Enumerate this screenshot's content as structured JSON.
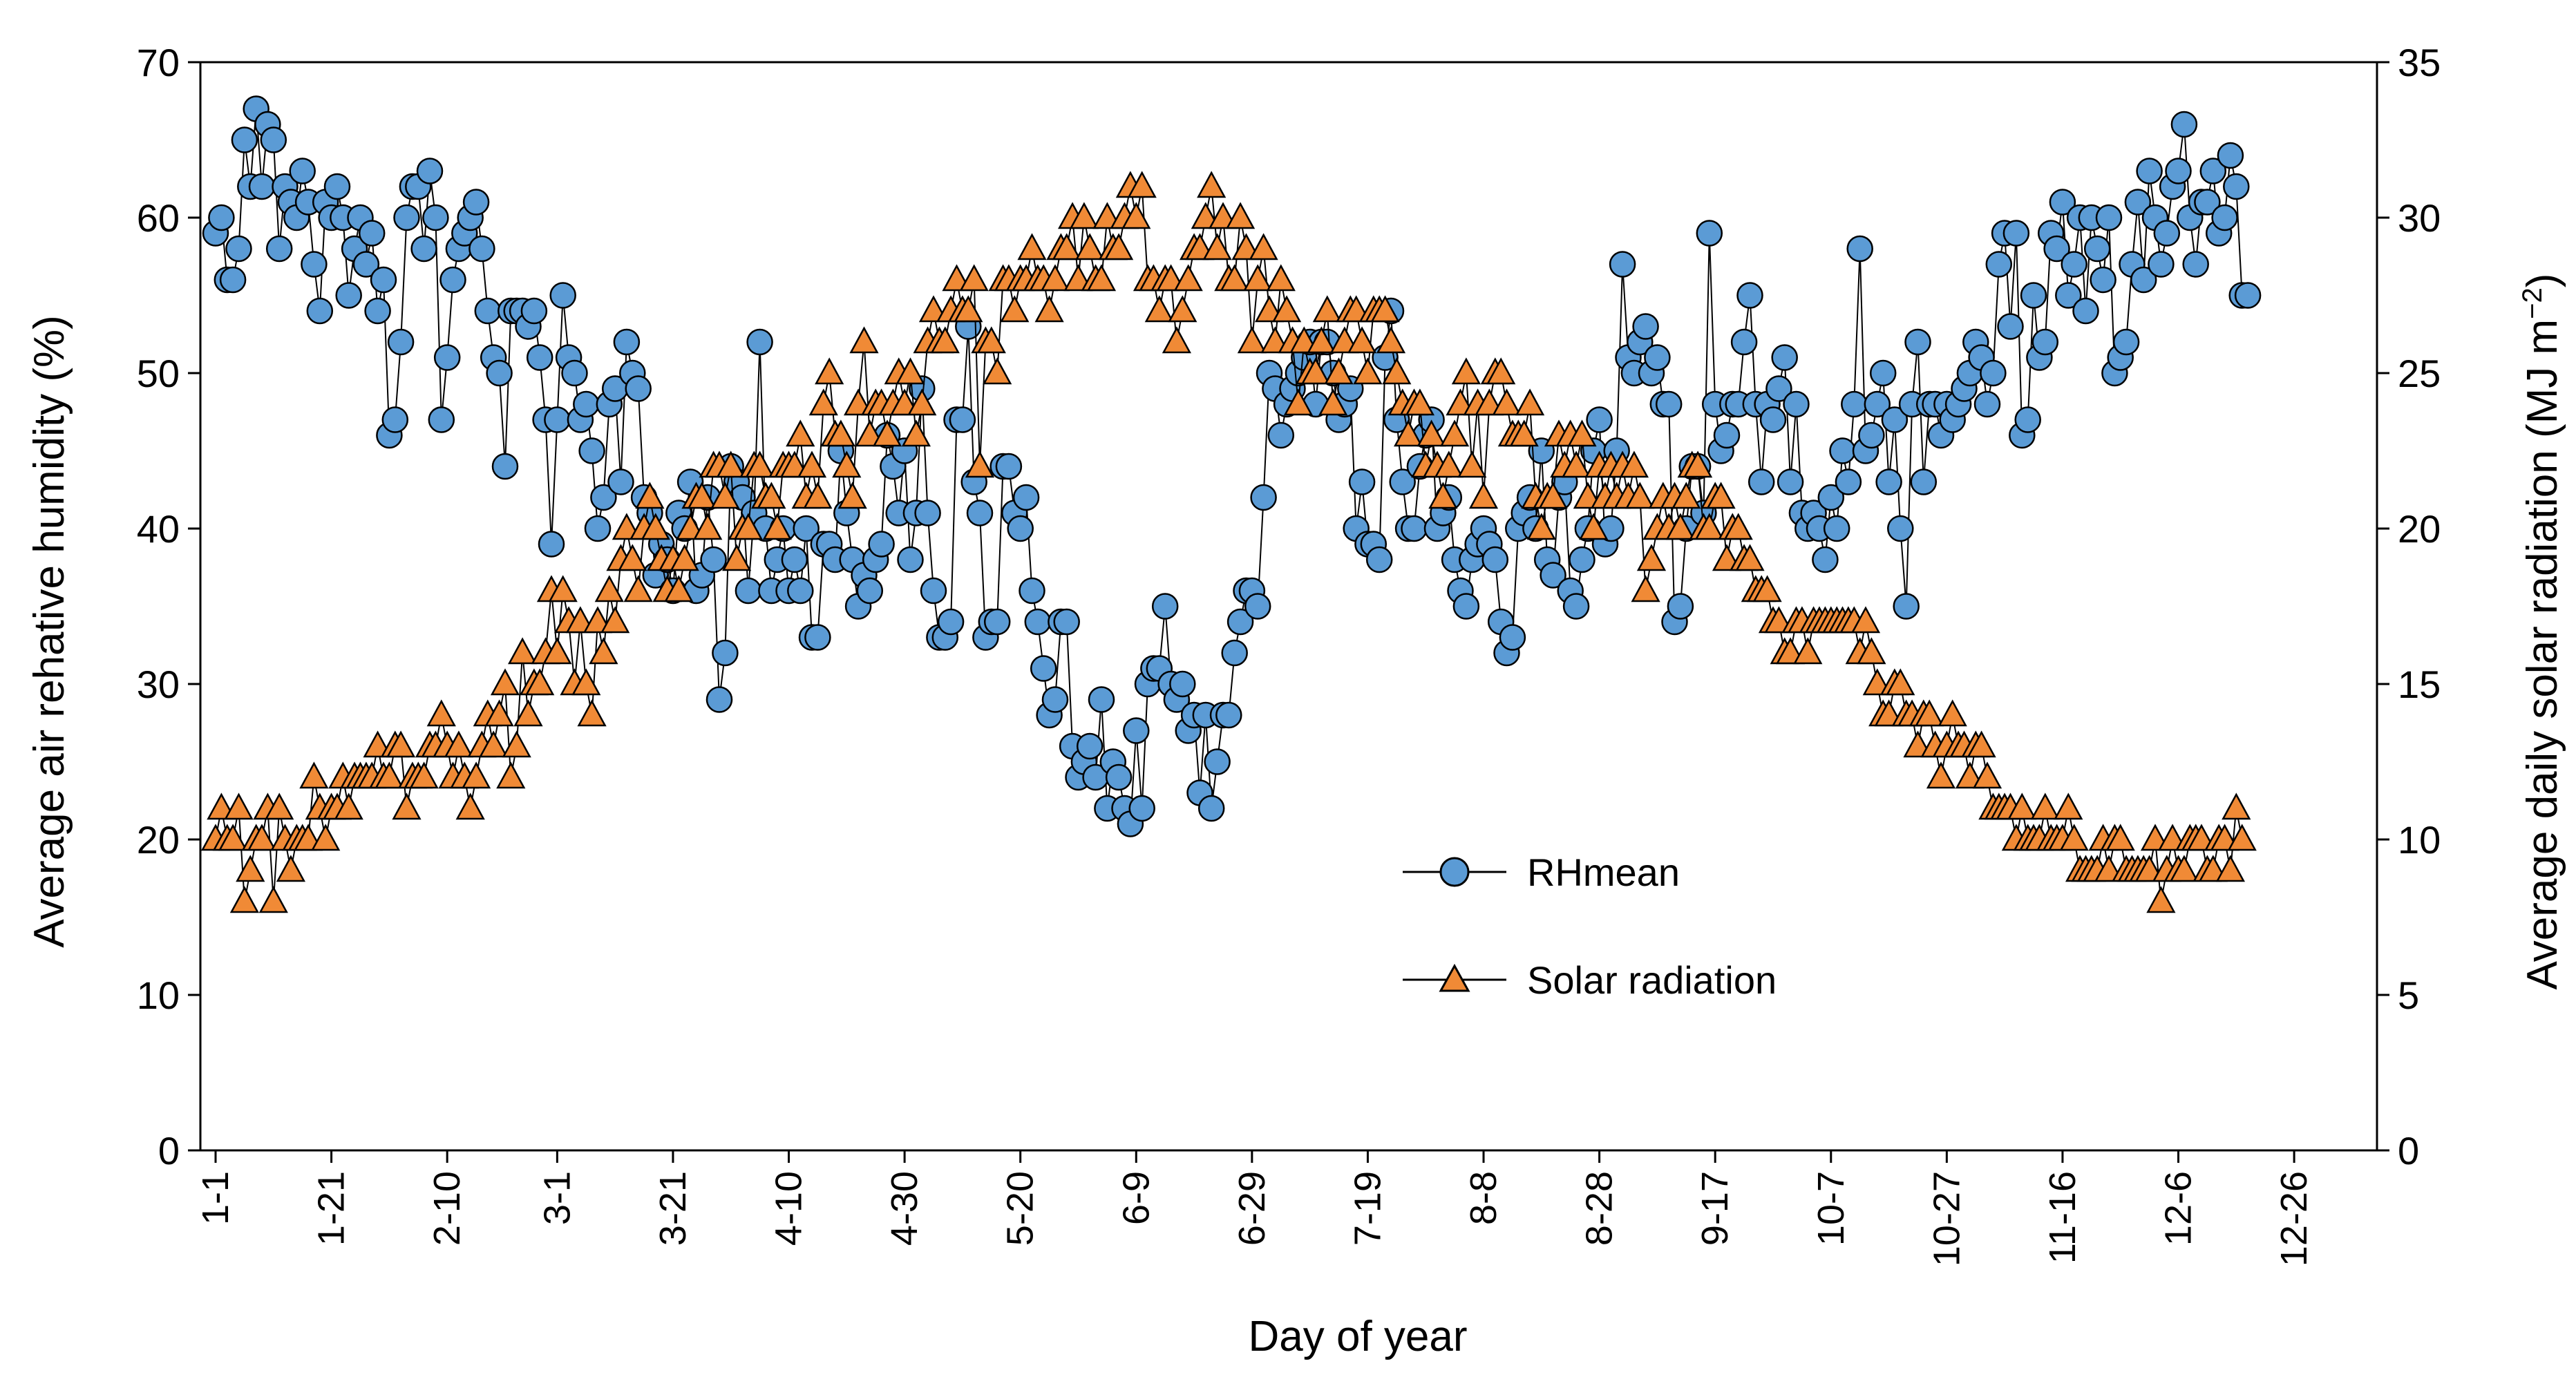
{
  "chart_data": {
    "type": "line",
    "title": "",
    "xlabel": "Day of year",
    "ylabel_left": "Average air rehative humidity (%)",
    "ylabel_right_base": "Average daily solar radiation (MJ m",
    "ylabel_right_sup": "−2",
    "ylabel_right_end": ")",
    "x_range": [
      1,
      365
    ],
    "ylim_left": [
      0,
      70
    ],
    "ylim_right": [
      0,
      35
    ],
    "yticks_left": [
      0,
      10,
      20,
      30,
      40,
      50,
      60,
      70
    ],
    "yticks_right": [
      0,
      5,
      10,
      15,
      20,
      25,
      30,
      35
    ],
    "xticks": [
      {
        "day": 1,
        "label": "1-1"
      },
      {
        "day": 21,
        "label": "1-21"
      },
      {
        "day": 41,
        "label": "2-10"
      },
      {
        "day": 60,
        "label": "3-1"
      },
      {
        "day": 80,
        "label": "3-21"
      },
      {
        "day": 100,
        "label": "4-10"
      },
      {
        "day": 120,
        "label": "4-30"
      },
      {
        "day": 140,
        "label": "5-20"
      },
      {
        "day": 160,
        "label": "6-9"
      },
      {
        "day": 180,
        "label": "6-29"
      },
      {
        "day": 200,
        "label": "7-19"
      },
      {
        "day": 220,
        "label": "8-8"
      },
      {
        "day": 240,
        "label": "8-28"
      },
      {
        "day": 260,
        "label": "9-17"
      },
      {
        "day": 280,
        "label": "10-7"
      },
      {
        "day": 300,
        "label": "10-27"
      },
      {
        "day": 320,
        "label": "11-16"
      },
      {
        "day": 340,
        "label": "12-6"
      },
      {
        "day": 360,
        "label": "12-26"
      }
    ],
    "legend": {
      "position": "center-right",
      "entries": [
        "RHmean",
        "Solar radiation"
      ]
    },
    "series": [
      {
        "name": "RHmean",
        "axis": "left",
        "color": "#5b9bd5",
        "marker": "circle",
        "x_start": 1,
        "x_step": 1,
        "values": [
          59,
          60,
          56,
          56,
          58,
          65,
          62,
          67,
          62,
          66,
          65,
          58,
          62,
          61,
          60,
          63,
          61,
          57,
          54,
          61,
          60,
          62,
          60,
          55,
          58,
          60,
          57,
          59,
          54,
          56,
          46,
          47,
          52,
          60,
          62,
          62,
          58,
          63,
          60,
          47,
          51,
          56,
          58,
          59,
          60,
          61,
          58,
          54,
          51,
          50,
          44,
          54,
          54,
          54,
          53,
          54,
          51,
          47,
          39,
          47,
          55,
          51,
          50,
          47,
          48,
          45,
          40,
          42,
          48,
          49,
          43,
          52,
          50,
          49,
          42,
          41,
          37,
          39,
          38,
          36,
          41,
          40,
          43,
          36,
          37,
          42,
          38,
          29,
          32,
          44,
          43,
          42,
          36,
          41,
          52,
          40,
          36,
          38,
          40,
          36,
          38,
          36,
          40,
          33,
          33,
          39,
          39,
          38,
          45,
          41,
          38,
          35,
          37,
          36,
          38,
          39,
          46,
          44,
          41,
          45,
          38,
          41,
          49,
          41,
          36,
          33,
          33,
          34,
          47,
          47,
          53,
          43,
          41,
          33,
          34,
          34,
          44,
          44,
          41,
          40,
          42,
          36,
          34,
          31,
          28,
          29,
          34,
          34,
          26,
          24,
          25,
          26,
          24,
          29,
          22,
          25,
          24,
          22,
          21,
          27,
          22,
          30,
          31,
          31,
          35,
          30,
          29,
          30,
          27,
          28,
          23,
          28,
          22,
          25,
          28,
          28,
          32,
          34,
          36,
          36,
          35,
          42,
          50,
          49,
          46,
          48,
          49,
          50,
          51,
          52,
          48,
          52,
          52,
          50,
          47,
          48,
          49,
          40,
          43,
          39,
          39,
          38,
          51,
          54,
          47,
          43,
          40,
          40,
          44,
          46,
          47,
          40,
          41,
          42,
          38,
          36,
          35,
          38,
          39,
          40,
          39,
          38,
          34,
          32,
          33,
          40,
          41,
          42,
          40,
          45,
          38,
          37,
          42,
          43,
          36,
          35,
          38,
          40,
          45,
          47,
          39,
          40,
          45,
          57,
          51,
          50,
          52,
          53,
          50,
          51,
          48,
          48,
          34,
          35,
          40,
          44,
          44,
          41,
          59,
          48,
          45,
          46,
          48,
          48,
          52,
          55,
          48,
          43,
          48,
          47,
          49,
          51,
          43,
          48,
          41,
          40,
          41,
          40,
          38,
          42,
          40,
          45,
          43,
          48,
          58,
          45,
          46,
          48,
          50,
          43,
          47,
          40,
          35,
          48,
          52,
          43,
          48,
          48,
          46,
          48,
          47,
          48,
          49,
          50,
          52,
          51,
          48,
          50,
          57,
          59,
          53,
          59,
          46,
          47,
          55,
          51,
          52,
          59,
          58,
          61,
          55,
          57,
          60,
          54,
          60,
          58,
          56,
          60,
          50,
          51,
          52,
          57,
          61,
          56,
          63,
          60,
          57,
          59,
          62,
          63,
          66,
          60,
          57,
          61,
          61,
          63,
          59,
          60,
          64,
          62,
          55,
          55
        ]
      },
      {
        "name": "Solar radiation",
        "axis": "right",
        "color": "#f08a36",
        "marker": "triangle",
        "x_start": 1,
        "x_step": 1,
        "values": [
          10,
          11,
          10,
          10,
          11,
          8,
          9,
          10,
          10,
          11,
          8,
          11,
          10,
          9,
          10,
          10,
          10,
          12,
          11,
          10,
          11,
          11,
          12,
          11,
          12,
          12,
          12,
          12,
          13,
          12,
          12,
          13,
          13,
          11,
          12,
          12,
          12,
          13,
          13,
          14,
          13,
          12,
          13,
          12,
          11,
          12,
          13,
          14,
          13,
          14,
          15,
          12,
          13,
          16,
          14,
          15,
          15,
          16,
          18,
          16,
          18,
          17,
          15,
          17,
          15,
          14,
          17,
          16,
          18,
          17,
          19,
          20,
          19,
          18,
          20,
          21,
          20,
          19,
          18,
          19,
          18,
          19,
          20,
          21,
          21,
          20,
          22,
          22,
          21,
          22,
          19,
          20,
          20,
          22,
          22,
          21,
          21,
          20,
          22,
          22,
          22,
          23,
          21,
          22,
          21,
          24,
          25,
          23,
          23,
          22,
          21,
          24,
          26,
          23,
          24,
          24,
          23,
          24,
          25,
          24,
          25,
          23,
          24,
          26,
          27,
          26,
          26,
          27,
          28,
          27,
          27,
          28,
          22,
          26,
          26,
          25,
          28,
          28,
          27,
          28,
          28,
          29,
          28,
          28,
          27,
          28,
          29,
          29,
          30,
          28,
          30,
          29,
          28,
          28,
          30,
          29,
          29,
          30,
          31,
          30,
          31,
          28,
          28,
          27,
          28,
          28,
          26,
          27,
          28,
          29,
          29,
          30,
          31,
          29,
          30,
          28,
          28,
          30,
          29,
          26,
          28,
          29,
          27,
          26,
          28,
          27,
          26,
          24,
          26,
          25,
          25,
          26,
          27,
          24,
          25,
          26,
          27,
          27,
          26,
          25,
          27,
          27,
          27,
          26,
          25,
          24,
          23,
          24,
          24,
          22,
          23,
          22,
          21,
          22,
          23,
          24,
          25,
          22,
          24,
          21,
          24,
          25,
          25,
          24,
          23,
          23,
          23,
          24,
          21,
          20,
          21,
          21,
          23,
          22,
          23,
          22,
          23,
          21,
          20,
          22,
          21,
          22,
          21,
          22,
          21,
          22,
          21,
          18,
          19,
          20,
          21,
          20,
          21,
          20,
          21,
          22,
          22,
          20,
          20,
          21,
          21,
          19,
          20,
          20,
          19,
          19,
          18,
          18,
          18,
          17,
          17,
          16,
          16,
          17,
          17,
          16,
          17,
          17,
          17,
          17,
          17,
          17,
          17,
          17,
          16,
          17,
          16,
          15,
          14,
          14,
          15,
          15,
          14,
          14,
          13,
          14,
          14,
          13,
          12,
          13,
          14,
          13,
          13,
          12,
          13,
          13,
          12,
          11,
          11,
          11,
          11,
          10,
          11,
          10,
          10,
          10,
          11,
          10,
          10,
          10,
          11,
          10,
          9,
          9,
          9,
          9,
          10,
          9,
          10,
          10,
          9,
          9,
          9,
          9,
          9,
          10,
          8,
          9,
          10,
          9,
          9,
          10,
          10,
          10,
          9,
          9,
          10,
          10,
          9,
          11,
          10
        ]
      }
    ]
  }
}
